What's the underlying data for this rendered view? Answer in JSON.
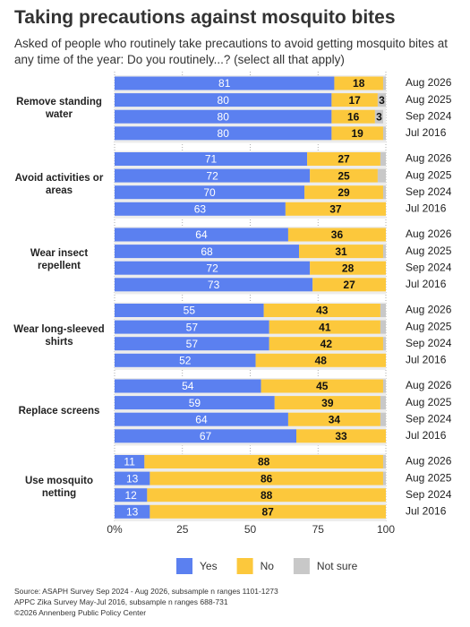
{
  "chart_data": {
    "type": "stacked_barh",
    "title": "Taking precautions against mosquito bites",
    "subtitle": "Asked of people who routinely take precautions to avoid getting mosquito bites at any time of the year: Do you routinely...? (select all that apply)",
    "groups": [
      "Remove standing water",
      "Avoid activities or areas",
      "Wear insect repellent",
      "Wear long-sleeved shirts",
      "Replace screens",
      "Use mosquito netting"
    ],
    "waves": [
      "Aug 2026",
      "Aug 2025",
      "Sep 2024",
      "Jul 2016"
    ],
    "series": [
      {
        "name": "Yes",
        "color": "#5b80f0",
        "label_color": "#ffffff",
        "values": [
          [
            81,
            80,
            80,
            80
          ],
          [
            71,
            72,
            70,
            63
          ],
          [
            64,
            68,
            72,
            73
          ],
          [
            55,
            57,
            57,
            52
          ],
          [
            54,
            59,
            64,
            67
          ],
          [
            11,
            13,
            12,
            13
          ]
        ]
      },
      {
        "name": "No",
        "color": "#fcc83c",
        "label_color": "#111111",
        "values": [
          [
            18,
            17,
            16,
            19
          ],
          [
            27,
            25,
            29,
            37
          ],
          [
            36,
            31,
            28,
            27
          ],
          [
            43,
            41,
            42,
            48
          ],
          [
            45,
            39,
            34,
            33
          ],
          [
            88,
            86,
            88,
            87
          ]
        ]
      },
      {
        "name": "Not sure",
        "color": "#c8c8c8",
        "label_color": "#111111",
        "values": [
          [
            1,
            3,
            3,
            1
          ],
          [
            2,
            3,
            1,
            0
          ],
          [
            0,
            1,
            0,
            0
          ],
          [
            2,
            2,
            1,
            0
          ],
          [
            1,
            2,
            2,
            0
          ],
          [
            1,
            1,
            0,
            0
          ]
        ],
        "value_labels": [
          [
            null,
            "3",
            "3",
            null
          ],
          [
            null,
            null,
            null,
            null
          ],
          [
            null,
            null,
            null,
            null
          ],
          [
            null,
            null,
            null,
            null
          ],
          [
            null,
            null,
            null,
            null
          ],
          [
            null,
            null,
            null,
            null
          ]
        ]
      }
    ],
    "xlim": [
      0,
      100
    ],
    "xticks": [
      {
        "value": 0,
        "label": "0%"
      },
      25,
      50,
      75,
      100
    ],
    "notes": [
      "Source: ASAPH Survey Sep 2024 - Aug 2026, subsample n ranges 1101-1273",
      "APPC Zika Survey May-Jul 2016, subsample n ranges 688-731",
      "©2026 Annenberg Public Policy Center"
    ]
  }
}
